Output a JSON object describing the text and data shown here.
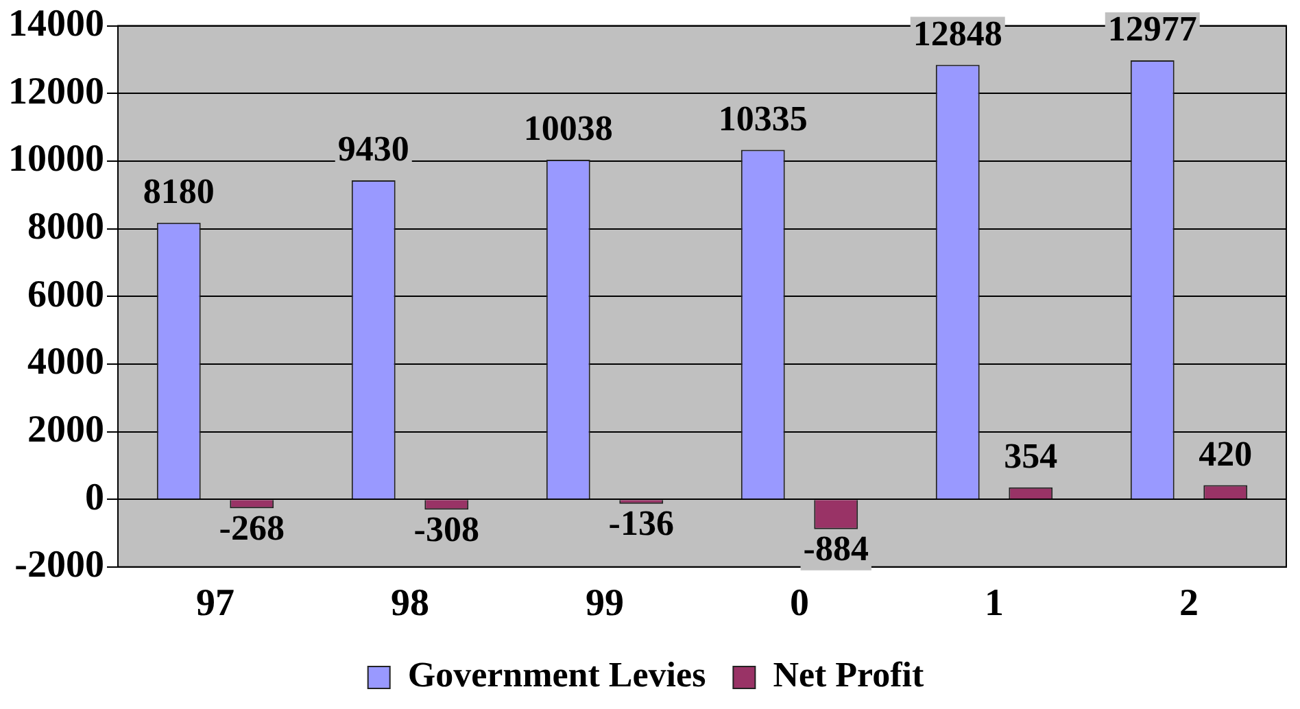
{
  "chart_data": {
    "type": "bar",
    "categories": [
      "97",
      "98",
      "99",
      "0",
      "1",
      "2"
    ],
    "series": [
      {
        "name": "Government Levies",
        "color": "#9999ff",
        "values": [
          8180,
          9430,
          10038,
          10335,
          12848,
          12977
        ]
      },
      {
        "name": "Net Profit",
        "color": "#993366",
        "values": [
          -268,
          -308,
          -136,
          -884,
          354,
          420
        ]
      }
    ],
    "ylim": [
      -2000,
      14000
    ],
    "yticks": [
      -2000,
      0,
      2000,
      4000,
      6000,
      8000,
      10000,
      12000,
      14000
    ],
    "grid": "y",
    "legend": "bottom",
    "data_labels": true
  }
}
